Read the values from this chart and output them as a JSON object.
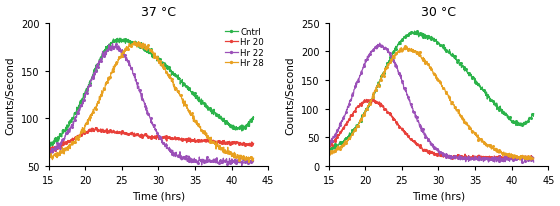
{
  "panel1": {
    "title": "37 °C",
    "xlim": [
      15,
      45
    ],
    "ylim": [
      50,
      200
    ],
    "yticks": [
      50,
      100,
      150,
      200
    ],
    "xticks": [
      15,
      20,
      25,
      30,
      35,
      40,
      45
    ],
    "ylabel": "Counts/Second",
    "xlabel": "Time (hrs)",
    "legend": [
      "Cntrl",
      "Hr 20",
      "Hr 22",
      "Hr 28"
    ],
    "colors": [
      "#2bb34a",
      "#e8403a",
      "#9b50b8",
      "#e8a020"
    ]
  },
  "panel2": {
    "title": "30 °C",
    "xlim": [
      15,
      45
    ],
    "ylim": [
      0,
      250
    ],
    "yticks": [
      0,
      50,
      100,
      150,
      200,
      250
    ],
    "xticks": [
      15,
      20,
      25,
      30,
      35,
      40,
      45
    ],
    "ylabel": "Counts/Second",
    "xlabel": "Time (hrs)",
    "colors": [
      "#2bb34a",
      "#e8403a",
      "#9b50b8",
      "#e8a020"
    ]
  }
}
